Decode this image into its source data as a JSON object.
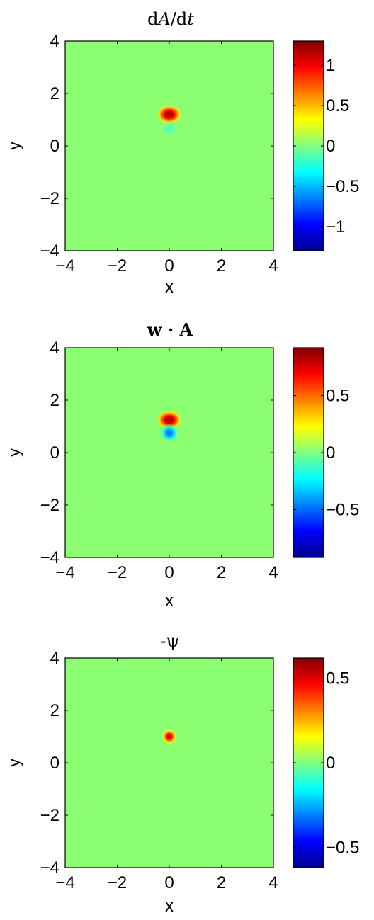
{
  "chart_data": [
    {
      "type": "heatmap",
      "title": "dA/dt",
      "title_parts": {
        "d1": "d",
        "A": "A",
        "slash": "/d",
        "t": "t"
      },
      "xlabel": "x",
      "ylabel": "y",
      "xlim": [
        -4,
        4
      ],
      "ylim": [
        -4,
        4
      ],
      "xticks": [
        -4,
        -2,
        0,
        2,
        4
      ],
      "yticks": [
        -4,
        -2,
        0,
        2,
        4
      ],
      "xtick_labels": [
        "−4",
        "−2",
        "0",
        "2",
        "4"
      ],
      "ytick_labels": [
        "−4",
        "−2",
        "0",
        "2",
        "4"
      ],
      "clim": [
        -1.3,
        1.3
      ],
      "colorbar_ticks": [
        1,
        0.5,
        0,
        -0.5,
        -1
      ],
      "colorbar_labels": [
        "1",
        "0.5",
        "0",
        "−0.5",
        "−1"
      ],
      "colormap": "jet",
      "background_value": 0,
      "features": [
        {
          "kind": "positive-lobe",
          "center": [
            0,
            1.2
          ],
          "peak": 1.3,
          "width": 0.5
        },
        {
          "kind": "negative-lobe",
          "center": [
            0,
            0.65
          ],
          "peak": -0.4,
          "width": 0.3
        }
      ]
    },
    {
      "type": "heatmap",
      "title": "w · A",
      "xlabel": "x",
      "ylabel": "y",
      "xlim": [
        -4,
        4
      ],
      "ylim": [
        -4,
        4
      ],
      "xticks": [
        -4,
        -2,
        0,
        2,
        4
      ],
      "yticks": [
        -4,
        -2,
        0,
        2,
        4
      ],
      "xtick_labels": [
        "−4",
        "−2",
        "0",
        "2",
        "4"
      ],
      "ytick_labels": [
        "−4",
        "−2",
        "0",
        "2",
        "4"
      ],
      "clim": [
        -0.92,
        0.92
      ],
      "colorbar_ticks": [
        0.5,
        0,
        -0.5
      ],
      "colorbar_labels": [
        "0.5",
        "0",
        "−0.5"
      ],
      "colormap": "jet",
      "background_value": 0,
      "features": [
        {
          "kind": "positive-lobe",
          "center": [
            0,
            1.25
          ],
          "peak": 0.9,
          "width": 0.5
        },
        {
          "kind": "negative-lobe",
          "center": [
            0,
            0.75
          ],
          "peak": -0.65,
          "width": 0.35
        }
      ]
    },
    {
      "type": "heatmap",
      "title": "-ψ",
      "xlabel": "x",
      "ylabel": "y",
      "xlim": [
        -4,
        4
      ],
      "ylim": [
        -4,
        4
      ],
      "xticks": [
        -4,
        -2,
        0,
        2,
        4
      ],
      "yticks": [
        -4,
        -2,
        0,
        2,
        4
      ],
      "xtick_labels": [
        "−4",
        "−2",
        "0",
        "2",
        "4"
      ],
      "ytick_labels": [
        "−4",
        "−2",
        "0",
        "2",
        "4"
      ],
      "clim": [
        -0.62,
        0.62
      ],
      "colorbar_ticks": [
        0.5,
        0,
        -0.5
      ],
      "colorbar_labels": [
        "0.5",
        "0",
        "−0.5"
      ],
      "colormap": "jet",
      "background_value": 0,
      "features": [
        {
          "kind": "gaussian-blob",
          "center": [
            0,
            1
          ],
          "peak": 0.62,
          "width": 0.3
        }
      ]
    }
  ]
}
